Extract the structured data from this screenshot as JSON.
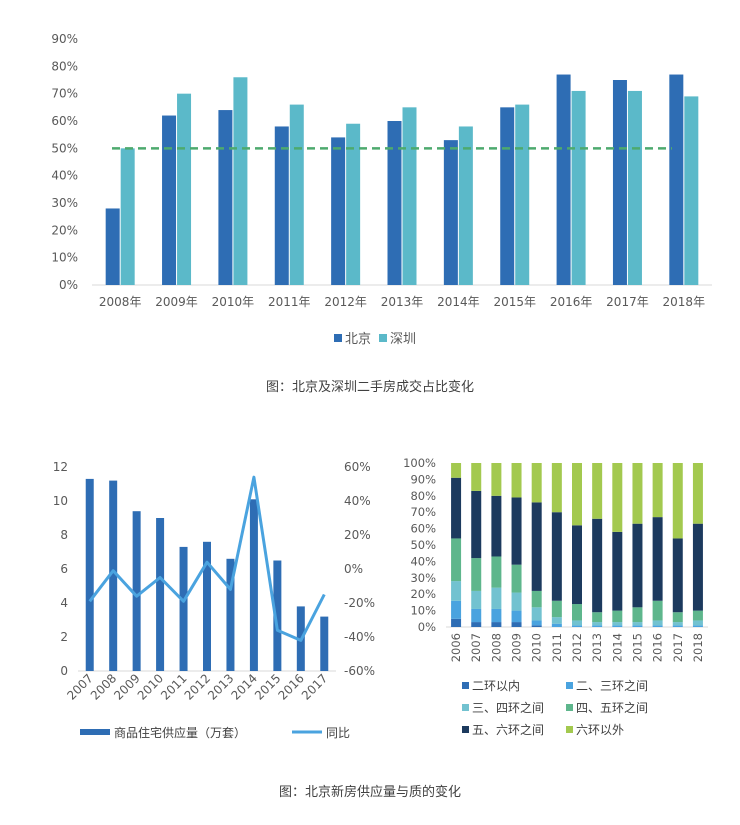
{
  "colors": {
    "beijing": "#2E6DB4",
    "shenzhen": "#5BB9C9",
    "ref_line": "#4DAA6E",
    "supply_bar": "#2E6DB4",
    "yoy_line": "#4AA3DF",
    "ring1": "#2E6DB4",
    "ring2_3": "#4AA3DF",
    "ring3_4": "#72C2D0",
    "ring4_5": "#5EB68C",
    "ring5_6": "#1C3A5E",
    "ring6_out": "#A3C94F"
  },
  "captions": {
    "top": "图：北京及深圳二手房成交占比变化",
    "bottom": "图：北京新房供应量与质的变化"
  },
  "chart_data": [
    {
      "type": "bar",
      "categories": [
        "2008年",
        "2009年",
        "2010年",
        "2011年",
        "2012年",
        "2013年",
        "2014年",
        "2015年",
        "2016年",
        "2017年",
        "2018年"
      ],
      "series": [
        {
          "name": "北京",
          "values": [
            28,
            62,
            64,
            58,
            54,
            60,
            53,
            65,
            77,
            75,
            77
          ]
        },
        {
          "name": "深圳",
          "values": [
            50,
            70,
            76,
            66,
            59,
            65,
            58,
            66,
            71,
            71,
            69
          ]
        }
      ],
      "reference_line": 50,
      "ylim": [
        0,
        90
      ],
      "yticks": [
        "0%",
        "10%",
        "20%",
        "30%",
        "40%",
        "50%",
        "60%",
        "70%",
        "80%",
        "90%"
      ],
      "legend": "bottom",
      "grid": false
    },
    {
      "type": "bar",
      "categories": [
        "2007",
        "2008",
        "2009",
        "2010",
        "2011",
        "2012",
        "2013",
        "2014",
        "2015",
        "2016",
        "2017"
      ],
      "series": [
        {
          "name": "商品住宅供应量（万套）",
          "type": "bar",
          "axis": "left",
          "values": [
            11.3,
            11.2,
            9.4,
            9.0,
            7.3,
            7.6,
            6.6,
            10.1,
            6.5,
            3.8,
            3.2
          ]
        },
        {
          "name": "同比",
          "type": "line",
          "axis": "right",
          "values": [
            -19,
            -1,
            -16,
            -5,
            -19,
            4,
            -12,
            54,
            -36,
            -42,
            -15
          ]
        }
      ],
      "ylim": [
        0,
        12
      ],
      "yticks": [
        "0",
        "2",
        "4",
        "6",
        "8",
        "10",
        "12"
      ],
      "y2lim": [
        -60,
        60
      ],
      "y2ticks": [
        "-60%",
        "-40%",
        "-20%",
        "0%",
        "20%",
        "40%",
        "60%"
      ],
      "legend": "bottom",
      "grid": false
    },
    {
      "type": "bar",
      "stacked": true,
      "categories": [
        "2006",
        "2007",
        "2008",
        "2009",
        "2010",
        "2011",
        "2012",
        "2013",
        "2014",
        "2015",
        "2016",
        "2017",
        "2018"
      ],
      "series": [
        {
          "name": "二环以内",
          "values": [
            5,
            3,
            3,
            3,
            1,
            0,
            0,
            0,
            0,
            0,
            0,
            0,
            0
          ]
        },
        {
          "name": "二、三环之间",
          "values": [
            11,
            8,
            8,
            7,
            3,
            2,
            1,
            1,
            1,
            1,
            1,
            1,
            1
          ]
        },
        {
          "name": "三、四环之间",
          "values": [
            12,
            11,
            13,
            11,
            8,
            4,
            3,
            2,
            2,
            2,
            3,
            2,
            3
          ]
        },
        {
          "name": "四、五环之间",
          "values": [
            26,
            20,
            19,
            17,
            10,
            10,
            10,
            6,
            7,
            9,
            12,
            6,
            6
          ]
        },
        {
          "name": "五、六环之间",
          "values": [
            37,
            41,
            37,
            41,
            54,
            54,
            48,
            57,
            48,
            51,
            51,
            45,
            53
          ]
        },
        {
          "name": "六环以外",
          "values": [
            9,
            17,
            20,
            21,
            24,
            30,
            38,
            34,
            42,
            37,
            33,
            46,
            37
          ]
        }
      ],
      "ylim": [
        0,
        100
      ],
      "yticks": [
        "0%",
        "10%",
        "20%",
        "30%",
        "40%",
        "50%",
        "60%",
        "70%",
        "80%",
        "90%",
        "100%"
      ],
      "legend": "bottom",
      "grid": false
    }
  ]
}
